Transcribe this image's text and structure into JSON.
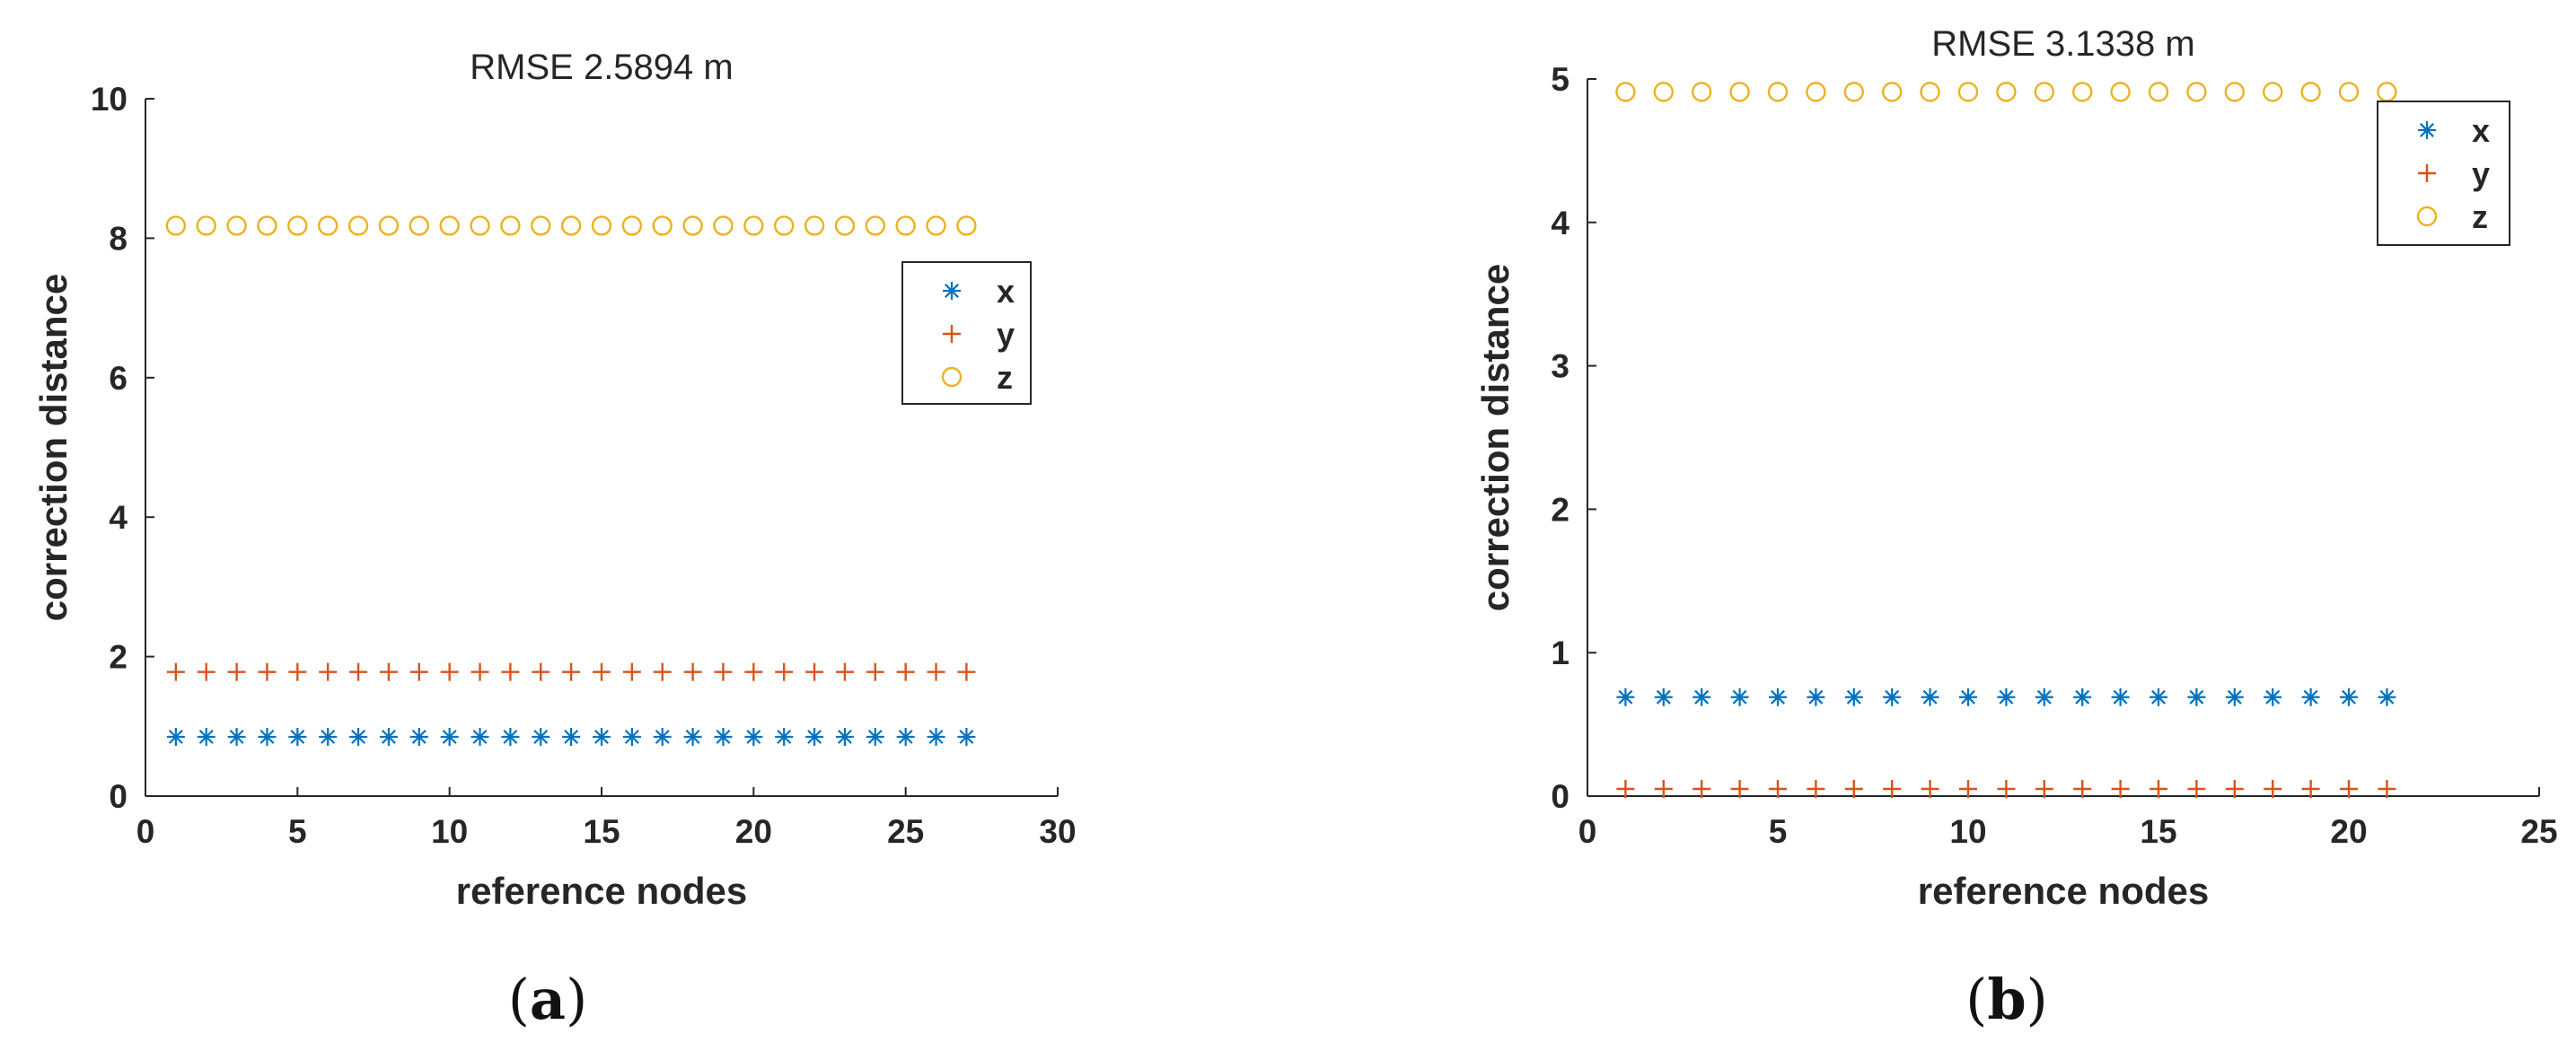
{
  "figure": {
    "captions": [
      "(a)",
      "(b)"
    ]
  },
  "chart_data": [
    {
      "type": "scatter",
      "title": "RMSE 2.5894 m",
      "xlabel": "reference nodes",
      "ylabel": "correction distance",
      "xlim": [
        0,
        30
      ],
      "ylim": [
        0,
        10
      ],
      "xticks": [
        0,
        5,
        10,
        15,
        20,
        25,
        30
      ],
      "yticks": [
        0,
        2,
        4,
        6,
        8,
        10
      ],
      "grid": false,
      "legend_position": "top-right",
      "x": [
        1,
        2,
        3,
        4,
        5,
        6,
        7,
        8,
        9,
        10,
        11,
        12,
        13,
        14,
        15,
        16,
        17,
        18,
        19,
        20,
        21,
        22,
        23,
        24,
        25,
        26,
        27
      ],
      "series": [
        {
          "name": "x",
          "marker": "asterisk",
          "color": "#0072BD",
          "values": [
            0.85,
            0.85,
            0.85,
            0.85,
            0.85,
            0.85,
            0.85,
            0.85,
            0.85,
            0.85,
            0.85,
            0.85,
            0.85,
            0.85,
            0.85,
            0.85,
            0.85,
            0.85,
            0.85,
            0.85,
            0.85,
            0.85,
            0.85,
            0.85,
            0.85,
            0.85,
            0.85
          ]
        },
        {
          "name": "y",
          "marker": "plus",
          "color": "#D95319",
          "values": [
            1.78,
            1.78,
            1.78,
            1.78,
            1.78,
            1.78,
            1.78,
            1.78,
            1.78,
            1.78,
            1.78,
            1.78,
            1.78,
            1.78,
            1.78,
            1.78,
            1.78,
            1.78,
            1.78,
            1.78,
            1.78,
            1.78,
            1.78,
            1.78,
            1.78,
            1.78,
            1.78
          ]
        },
        {
          "name": "z",
          "marker": "circle",
          "color": "#EDB120",
          "values": [
            8.18,
            8.18,
            8.18,
            8.18,
            8.18,
            8.18,
            8.18,
            8.18,
            8.18,
            8.18,
            8.18,
            8.18,
            8.18,
            8.18,
            8.18,
            8.18,
            8.18,
            8.18,
            8.18,
            8.18,
            8.18,
            8.18,
            8.18,
            8.18,
            8.18,
            8.18,
            8.18
          ]
        }
      ]
    },
    {
      "type": "scatter",
      "title": "RMSE 3.1338 m",
      "xlabel": "reference nodes",
      "ylabel": "correction distance",
      "xlim": [
        0,
        25
      ],
      "ylim": [
        0,
        5
      ],
      "xticks": [
        0,
        5,
        10,
        15,
        20,
        25
      ],
      "yticks": [
        0,
        1,
        2,
        3,
        4,
        5
      ],
      "grid": false,
      "legend_position": "top-right",
      "x": [
        1,
        2,
        3,
        4,
        5,
        6,
        7,
        8,
        9,
        10,
        11,
        12,
        13,
        14,
        15,
        16,
        17,
        18,
        19,
        20,
        21
      ],
      "series": [
        {
          "name": "x",
          "marker": "asterisk",
          "color": "#0072BD",
          "values": [
            0.69,
            0.69,
            0.69,
            0.69,
            0.69,
            0.69,
            0.69,
            0.69,
            0.69,
            0.69,
            0.69,
            0.69,
            0.69,
            0.69,
            0.69,
            0.69,
            0.69,
            0.69,
            0.69,
            0.69,
            0.69
          ]
        },
        {
          "name": "y",
          "marker": "plus",
          "color": "#D95319",
          "values": [
            0.05,
            0.05,
            0.05,
            0.05,
            0.05,
            0.05,
            0.05,
            0.05,
            0.05,
            0.05,
            0.05,
            0.05,
            0.05,
            0.05,
            0.05,
            0.05,
            0.05,
            0.05,
            0.05,
            0.05,
            0.05
          ]
        },
        {
          "name": "z",
          "marker": "circle",
          "color": "#EDB120",
          "values": [
            4.91,
            4.91,
            4.91,
            4.91,
            4.91,
            4.91,
            4.91,
            4.91,
            4.91,
            4.91,
            4.91,
            4.91,
            4.91,
            4.91,
            4.91,
            4.91,
            4.91,
            4.91,
            4.91,
            4.91,
            4.91
          ]
        }
      ]
    }
  ]
}
